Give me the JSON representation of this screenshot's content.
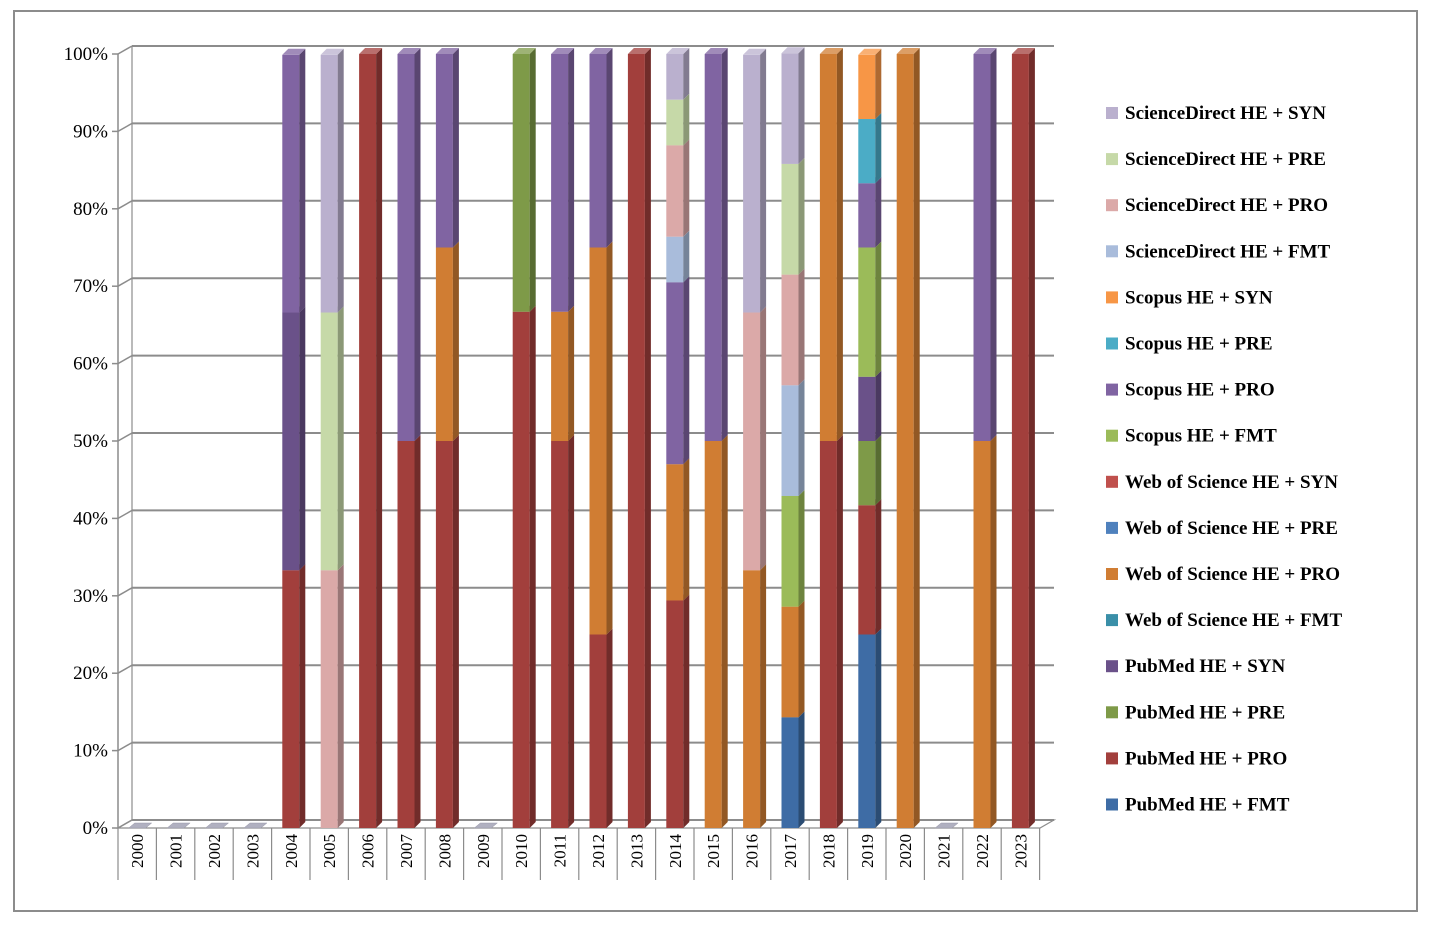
{
  "chart_data": {
    "type": "bar",
    "subtype": "stacked-100-percent-3d",
    "title": "",
    "xlabel": "",
    "ylabel": "",
    "ylim": [
      0,
      100
    ],
    "yticks": [
      "0%",
      "10%",
      "20%",
      "30%",
      "40%",
      "50%",
      "60%",
      "70%",
      "80%",
      "90%",
      "100%"
    ],
    "grid": true,
    "legend_position": "right",
    "categories": [
      "2000",
      "2001",
      "2002",
      "2003",
      "2004",
      "2005",
      "2006",
      "2007",
      "2008",
      "2009",
      "2010",
      "2011",
      "2012",
      "2013",
      "2014",
      "2015",
      "2016",
      "2017",
      "2018",
      "2019",
      "2020",
      "2021",
      "2022",
      "2023"
    ],
    "series": [
      {
        "name": "PubMed HE + FMT",
        "color": "#3E6CA5",
        "values": [
          0,
          0,
          0,
          0,
          0,
          0,
          0,
          0,
          0,
          0,
          0,
          0,
          0,
          0,
          0,
          0,
          0,
          14.3,
          0,
          25,
          0,
          0,
          0,
          0
        ]
      },
      {
        "name": "PubMed HE + PRO",
        "color": "#A23F3C",
        "values": [
          0,
          0,
          0,
          0,
          33.3,
          0,
          100,
          50,
          50,
          0,
          66.7,
          50,
          25,
          100,
          29.4,
          0,
          0,
          0,
          50,
          16.7,
          0,
          0,
          0,
          100
        ]
      },
      {
        "name": "PubMed HE + PRE",
        "color": "#7E9A48",
        "values": [
          0,
          0,
          0,
          0,
          0,
          0,
          0,
          0,
          0,
          0,
          33.3,
          0,
          0,
          0,
          0,
          0,
          0,
          0,
          0,
          8.3,
          0,
          0,
          0,
          0
        ]
      },
      {
        "name": "PubMed HE + SYN",
        "color": "#6A5189",
        "values": [
          0,
          0,
          0,
          0,
          33.3,
          0,
          0,
          0,
          0,
          0,
          0,
          0,
          0,
          0,
          0,
          0,
          0,
          0,
          0,
          8.3,
          0,
          0,
          0,
          0
        ]
      },
      {
        "name": "Web of Science HE + FMT",
        "color": "#3A8FA8",
        "values": [
          0,
          0,
          0,
          0,
          0,
          0,
          0,
          0,
          0,
          0,
          0,
          0,
          0,
          0,
          0,
          0,
          0,
          0,
          0,
          0,
          0,
          0,
          0,
          0
        ]
      },
      {
        "name": "Web of Science HE + PRO",
        "color": "#D07D33",
        "values": [
          0,
          0,
          0,
          0,
          0,
          0,
          0,
          0,
          25,
          0,
          0,
          16.7,
          50,
          0,
          17.6,
          50,
          33.3,
          14.3,
          50,
          0,
          100,
          0,
          50,
          0
        ]
      },
      {
        "name": "Web of Science HE + PRE",
        "color": "#4F81BD",
        "values": [
          0,
          0,
          0,
          0,
          0,
          0,
          0,
          0,
          0,
          0,
          0,
          0,
          0,
          0,
          0,
          0,
          0,
          0,
          0,
          0,
          0,
          0,
          0,
          0
        ]
      },
      {
        "name": "Web of Science HE + SYN",
        "color": "#C0504D",
        "values": [
          0,
          0,
          0,
          0,
          0,
          0,
          0,
          0,
          0,
          0,
          0,
          0,
          0,
          0,
          0,
          0,
          0,
          0,
          0,
          0,
          0,
          0,
          0,
          0
        ]
      },
      {
        "name": "Scopus HE + FMT",
        "color": "#9BBB59",
        "values": [
          0,
          0,
          0,
          0,
          0,
          0,
          0,
          0,
          0,
          0,
          0,
          0,
          0,
          0,
          0,
          0,
          0,
          14.3,
          0,
          16.7,
          0,
          0,
          0,
          0
        ]
      },
      {
        "name": "Scopus HE + PRO",
        "color": "#8064A2",
        "values": [
          0,
          0,
          0,
          0,
          33.3,
          0,
          0,
          50,
          25,
          0,
          0,
          33.3,
          25,
          0,
          23.5,
          50,
          0,
          0,
          0,
          8.3,
          0,
          0,
          50,
          0
        ]
      },
      {
        "name": "Scopus HE + PRE",
        "color": "#4BACC6",
        "values": [
          0,
          0,
          0,
          0,
          0,
          0,
          0,
          0,
          0,
          0,
          0,
          0,
          0,
          0,
          0,
          0,
          0,
          0,
          0,
          8.3,
          0,
          0,
          0,
          0
        ]
      },
      {
        "name": "Scopus HE + SYN",
        "color": "#F79646",
        "values": [
          0,
          0,
          0,
          0,
          0,
          0,
          0,
          0,
          0,
          0,
          0,
          0,
          0,
          0,
          0,
          0,
          0,
          0,
          0,
          8.3,
          0,
          0,
          0,
          0
        ]
      },
      {
        "name": "ScienceDirect HE + FMT",
        "color": "#A9BCDB",
        "values": [
          0,
          0,
          0,
          0,
          0,
          0,
          0,
          0,
          0,
          0,
          0,
          0,
          0,
          0,
          5.9,
          0,
          0,
          14.3,
          0,
          0,
          0,
          0,
          0,
          0
        ]
      },
      {
        "name": "ScienceDirect HE + PRO",
        "color": "#DBA9A8",
        "values": [
          0,
          0,
          0,
          0,
          0,
          33.3,
          0,
          0,
          0,
          0,
          0,
          0,
          0,
          0,
          11.8,
          0,
          33.3,
          14.3,
          0,
          0,
          0,
          0,
          0,
          0
        ]
      },
      {
        "name": "ScienceDirect HE + PRE",
        "color": "#C6D9A8",
        "values": [
          0,
          0,
          0,
          0,
          0,
          33.3,
          0,
          0,
          0,
          0,
          0,
          0,
          0,
          0,
          5.9,
          0,
          0,
          14.3,
          0,
          0,
          0,
          0,
          0,
          0
        ]
      },
      {
        "name": "ScienceDirect HE + SYN",
        "color": "#BAB0CE",
        "values": [
          0,
          0,
          0,
          0,
          0,
          33.3,
          0,
          0,
          0,
          0,
          0,
          0,
          0,
          0,
          5.9,
          0,
          33.3,
          14.3,
          0,
          0,
          0,
          0,
          0,
          0
        ]
      }
    ]
  }
}
